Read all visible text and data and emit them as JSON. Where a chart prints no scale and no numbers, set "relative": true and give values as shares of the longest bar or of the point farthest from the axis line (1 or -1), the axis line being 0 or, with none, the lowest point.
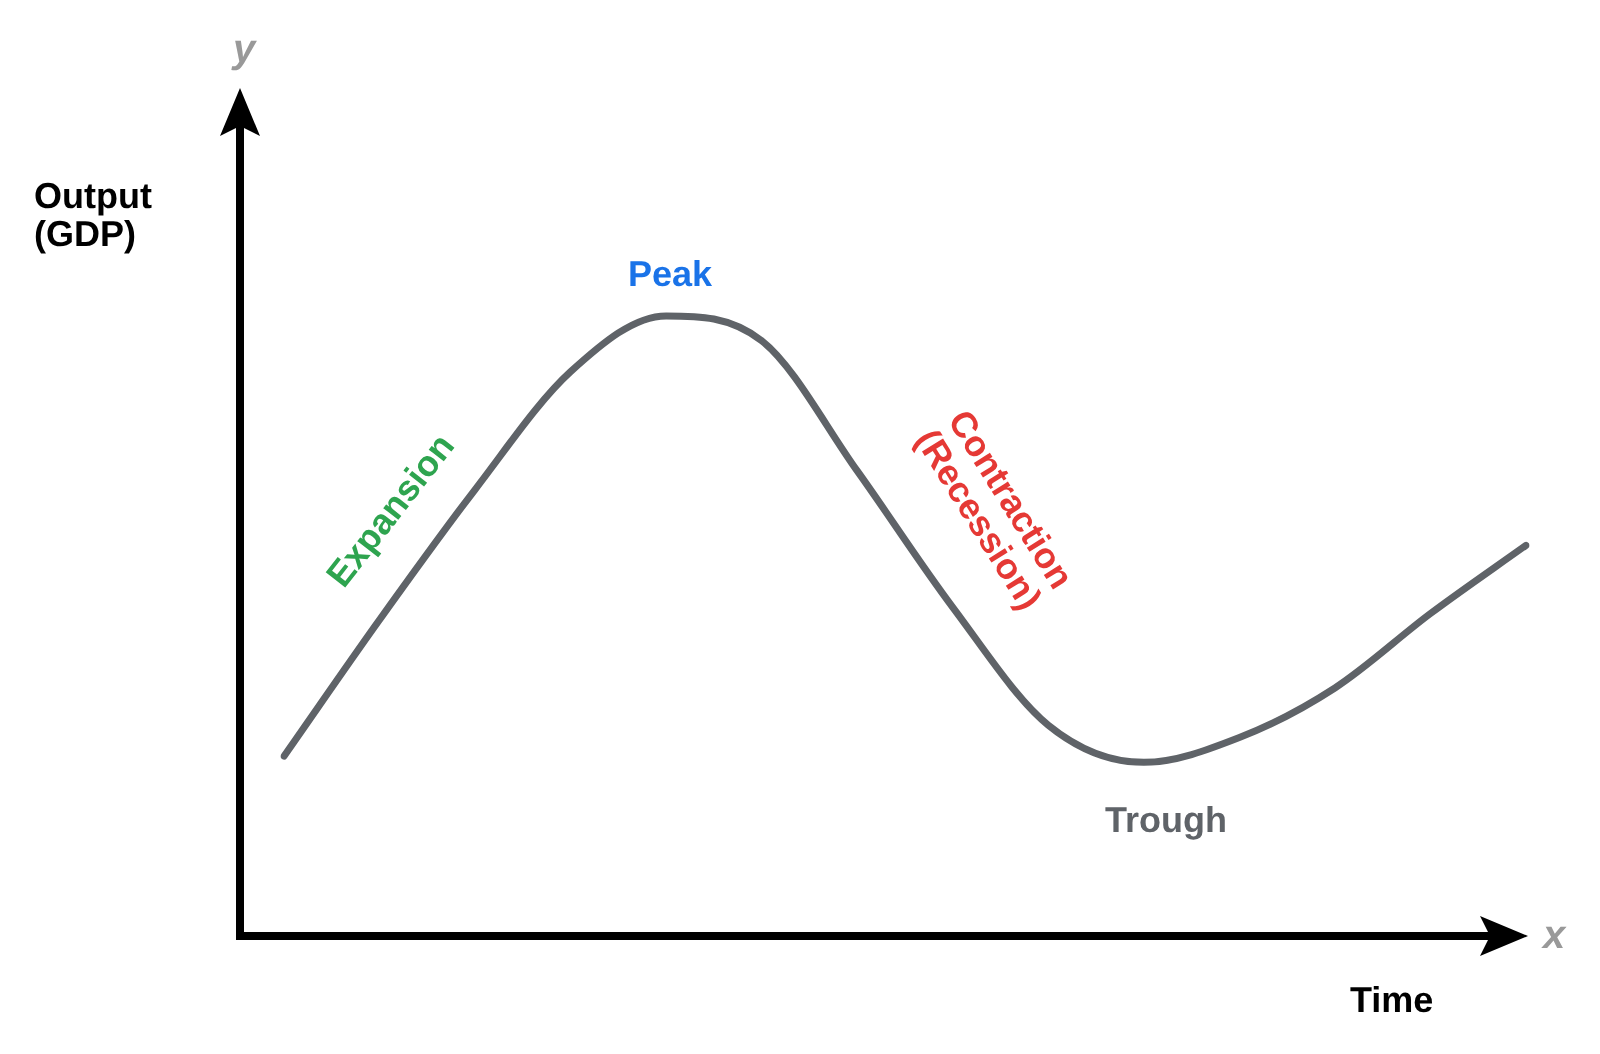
{
  "chart_data": {
    "type": "line",
    "relative": true,
    "tick_labels": false,
    "xlabel": "Time",
    "ylabel": "Output (GDP)",
    "categories": [
      null,
      null,
      null,
      null,
      null,
      null,
      null,
      null,
      null,
      null,
      null,
      null,
      null,
      null
    ],
    "series": [
      {
        "color": "#5f6368",
        "values": [
          0.29,
          0.51,
          0.72,
          0.91,
          1.0,
          0.96,
          0.75,
          0.53,
          0.34,
          0.28,
          0.32,
          0.4,
          0.52,
          0.63
        ]
      }
    ],
    "annotations": [
      "y",
      "x",
      "Peak",
      "Expansion",
      "Contraction\n(Recession)",
      "Trough"
    ]
  }
}
